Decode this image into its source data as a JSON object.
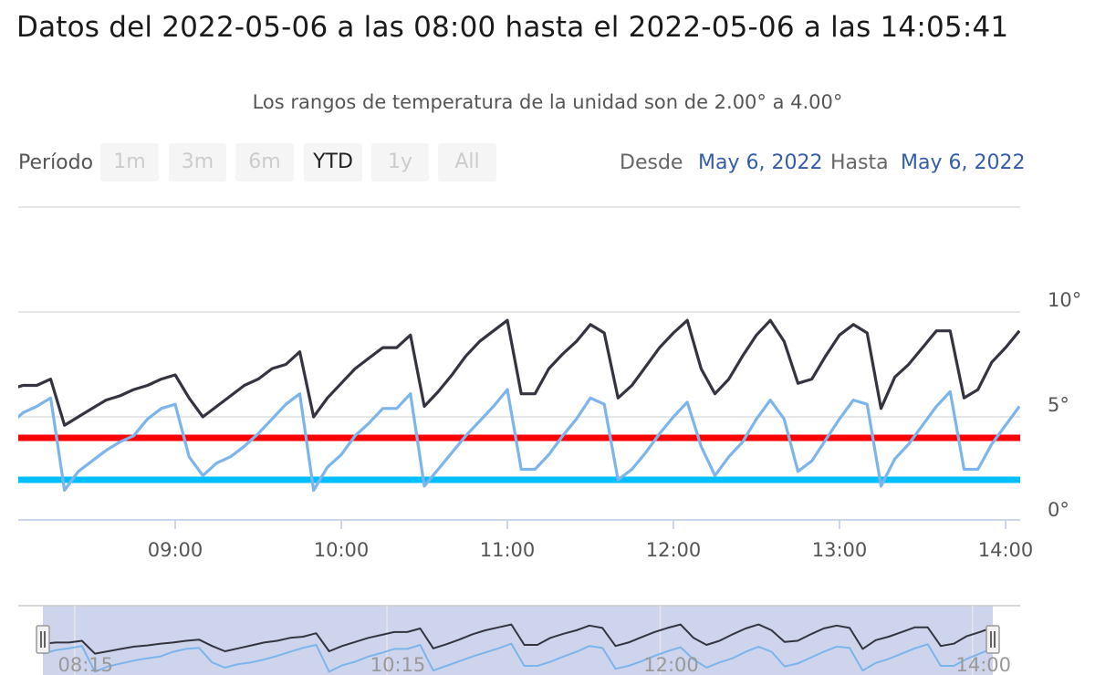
{
  "header": {
    "title": "Datos del 2022-05-06 a las 08:00 hasta el 2022-05-06 a las 14:05:41",
    "subtitle": "Los rangos de temperatura de la unidad son de 2.00° a 4.00°"
  },
  "range_selector": {
    "label": "Período",
    "buttons": [
      "1m",
      "3m",
      "6m",
      "YTD",
      "1y",
      "All"
    ],
    "active": "YTD",
    "from_label": "Desde",
    "from_value": "May 6, 2022",
    "to_label": "Hasta",
    "to_value": "May 6, 2022"
  },
  "colors": {
    "series_dark": "#333440",
    "series_light": "#7cb5ec",
    "upper_limit": "#ff0000",
    "lower_limit": "#00bfff",
    "navigator_mask": "#c5cde8"
  },
  "chart_data": {
    "type": "line",
    "title": "",
    "xlabel": "",
    "ylabel": "",
    "ylim": [
      0,
      10
    ],
    "y_ticks": [
      "0°",
      "5°",
      "10°"
    ],
    "x_ticks": [
      "09:00",
      "10:00",
      "11:00",
      "12:00",
      "13:00",
      "14:00"
    ],
    "x_range": [
      "08:00",
      "14:05"
    ],
    "grid": true,
    "series": [
      {
        "values": [
          [
            0,
            6.3
          ],
          [
            5,
            6.5
          ],
          [
            10,
            6.5
          ],
          [
            15,
            6.8
          ],
          [
            20,
            4.6
          ],
          [
            25,
            5.0
          ],
          [
            30,
            5.4
          ],
          [
            35,
            5.8
          ],
          [
            40,
            6.0
          ],
          [
            45,
            6.3
          ],
          [
            50,
            6.5
          ],
          [
            55,
            6.8
          ],
          [
            60,
            7.0
          ],
          [
            65,
            5.9
          ],
          [
            70,
            5.0
          ],
          [
            75,
            5.5
          ],
          [
            80,
            6.0
          ],
          [
            85,
            6.5
          ],
          [
            90,
            6.8
          ],
          [
            95,
            7.3
          ],
          [
            100,
            7.5
          ],
          [
            105,
            8.1
          ],
          [
            110,
            5.0
          ],
          [
            115,
            5.9
          ],
          [
            120,
            6.6
          ],
          [
            125,
            7.3
          ],
          [
            130,
            7.8
          ],
          [
            135,
            8.3
          ],
          [
            140,
            8.3
          ],
          [
            145,
            8.9
          ],
          [
            150,
            5.5
          ],
          [
            155,
            6.2
          ],
          [
            160,
            7.0
          ],
          [
            165,
            7.9
          ],
          [
            170,
            8.6
          ],
          [
            175,
            9.1
          ],
          [
            180,
            9.6
          ],
          [
            185,
            6.1
          ],
          [
            190,
            6.1
          ],
          [
            195,
            7.3
          ],
          [
            200,
            8.0
          ],
          [
            205,
            8.6
          ],
          [
            210,
            9.4
          ],
          [
            215,
            9.0
          ],
          [
            220,
            5.9
          ],
          [
            225,
            6.5
          ],
          [
            230,
            7.4
          ],
          [
            235,
            8.3
          ],
          [
            240,
            9.0
          ],
          [
            245,
            9.6
          ],
          [
            250,
            7.3
          ],
          [
            255,
            6.1
          ],
          [
            260,
            6.8
          ],
          [
            265,
            7.9
          ],
          [
            270,
            8.9
          ],
          [
            275,
            9.6
          ],
          [
            280,
            8.6
          ],
          [
            285,
            6.6
          ],
          [
            290,
            6.8
          ],
          [
            295,
            7.9
          ],
          [
            300,
            8.9
          ],
          [
            305,
            9.4
          ],
          [
            310,
            9.0
          ],
          [
            315,
            5.4
          ],
          [
            320,
            6.9
          ],
          [
            325,
            7.5
          ],
          [
            330,
            8.3
          ],
          [
            335,
            9.1
          ],
          [
            340,
            9.1
          ],
          [
            345,
            5.9
          ],
          [
            350,
            6.3
          ],
          [
            355,
            7.6
          ],
          [
            360,
            8.3
          ],
          [
            365,
            9.1
          ]
        ]
      },
      {
        "values": [
          [
            0,
            4.6
          ],
          [
            5,
            5.2
          ],
          [
            10,
            5.5
          ],
          [
            15,
            5.9
          ],
          [
            20,
            1.5
          ],
          [
            25,
            2.4
          ],
          [
            30,
            2.9
          ],
          [
            35,
            3.4
          ],
          [
            40,
            3.8
          ],
          [
            45,
            4.1
          ],
          [
            50,
            4.9
          ],
          [
            55,
            5.4
          ],
          [
            60,
            5.6
          ],
          [
            65,
            3.1
          ],
          [
            70,
            2.2
          ],
          [
            75,
            2.8
          ],
          [
            80,
            3.1
          ],
          [
            85,
            3.6
          ],
          [
            90,
            4.2
          ],
          [
            95,
            4.9
          ],
          [
            100,
            5.6
          ],
          [
            105,
            6.1
          ],
          [
            110,
            1.5
          ],
          [
            115,
            2.6
          ],
          [
            120,
            3.2
          ],
          [
            125,
            4.1
          ],
          [
            130,
            4.7
          ],
          [
            135,
            5.4
          ],
          [
            140,
            5.4
          ],
          [
            145,
            6.1
          ],
          [
            150,
            1.7
          ],
          [
            155,
            2.5
          ],
          [
            160,
            3.3
          ],
          [
            165,
            4.1
          ],
          [
            170,
            4.8
          ],
          [
            175,
            5.5
          ],
          [
            180,
            6.3
          ],
          [
            185,
            2.5
          ],
          [
            190,
            2.5
          ],
          [
            195,
            3.2
          ],
          [
            200,
            4.1
          ],
          [
            205,
            4.9
          ],
          [
            210,
            5.9
          ],
          [
            215,
            5.6
          ],
          [
            220,
            2.0
          ],
          [
            225,
            2.5
          ],
          [
            230,
            3.3
          ],
          [
            235,
            4.2
          ],
          [
            240,
            5.0
          ],
          [
            245,
            5.7
          ],
          [
            250,
            3.6
          ],
          [
            255,
            2.2
          ],
          [
            260,
            3.1
          ],
          [
            265,
            3.8
          ],
          [
            270,
            4.9
          ],
          [
            275,
            5.8
          ],
          [
            280,
            4.9
          ],
          [
            285,
            2.4
          ],
          [
            290,
            2.9
          ],
          [
            295,
            3.9
          ],
          [
            300,
            4.9
          ],
          [
            305,
            5.8
          ],
          [
            310,
            5.6
          ],
          [
            315,
            1.7
          ],
          [
            320,
            3.0
          ],
          [
            325,
            3.7
          ],
          [
            330,
            4.6
          ],
          [
            335,
            5.5
          ],
          [
            340,
            6.2
          ],
          [
            345,
            2.5
          ],
          [
            350,
            2.5
          ],
          [
            355,
            3.7
          ],
          [
            360,
            4.6
          ],
          [
            365,
            5.5
          ]
        ]
      }
    ],
    "plot_lines": [
      {
        "value": 4.0,
        "color": "#ff0000"
      },
      {
        "value": 2.0,
        "color": "#00bfff"
      }
    ],
    "navigator": {
      "x_ticks": [
        "08:15",
        "10:15",
        "12:00",
        "14:00"
      ]
    }
  }
}
